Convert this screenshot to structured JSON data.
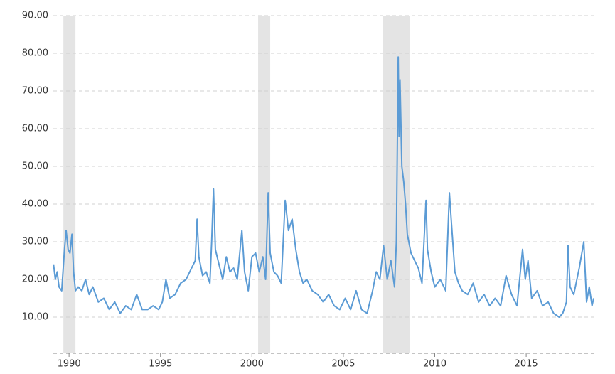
{
  "chart_data": {
    "type": "line",
    "xlim": [
      1989.14,
      2018.69
    ],
    "ylim": [
      0,
      90
    ],
    "xticks": [
      1990,
      1995,
      2000,
      2005,
      2010,
      2015
    ],
    "yticks": [
      {
        "value": 10,
        "label": "10.00"
      },
      {
        "value": 20,
        "label": "20.00"
      },
      {
        "value": 30,
        "label": "30.00"
      },
      {
        "value": 40,
        "label": "40.00"
      },
      {
        "value": 50,
        "label": "50.00"
      },
      {
        "value": 60,
        "label": "60.00"
      },
      {
        "value": 70,
        "label": "70.00"
      },
      {
        "value": 80,
        "label": "80.00"
      },
      {
        "value": 90,
        "label": "90.00"
      }
    ],
    "grid": true,
    "recessions": [
      [
        1989.69,
        1990.35
      ],
      [
        2000.34,
        2001.0
      ],
      [
        2007.15,
        2008.63
      ]
    ],
    "recession_color": "#e4e4e4",
    "x": [
      1989.15,
      1989.25,
      1989.35,
      1989.45,
      1989.6,
      1989.75,
      1989.84,
      1989.95,
      1990.05,
      1990.16,
      1990.25,
      1990.35,
      1990.5,
      1990.7,
      1990.9,
      1991.1,
      1991.3,
      1991.6,
      1991.9,
      1992.2,
      1992.5,
      1992.8,
      1993.1,
      1993.4,
      1993.7,
      1994.0,
      1994.3,
      1994.6,
      1994.9,
      1995.1,
      1995.3,
      1995.5,
      1995.8,
      1996.1,
      1996.4,
      1996.7,
      1996.9,
      1997.0,
      1997.1,
      1997.3,
      1997.5,
      1997.7,
      1997.8,
      1997.9,
      1998.0,
      1998.2,
      1998.4,
      1998.6,
      1998.8,
      1999.0,
      1999.2,
      1999.45,
      1999.6,
      1999.8,
      2000.0,
      2000.2,
      2000.4,
      2000.6,
      2000.75,
      2000.89,
      2001.0,
      2001.2,
      2001.4,
      2001.6,
      2001.82,
      2002.0,
      2002.2,
      2002.4,
      2002.6,
      2002.8,
      2003.0,
      2003.3,
      2003.6,
      2003.9,
      2004.2,
      2004.5,
      2004.8,
      2005.1,
      2005.4,
      2005.7,
      2006.0,
      2006.3,
      2006.6,
      2006.8,
      2007.0,
      2007.2,
      2007.4,
      2007.6,
      2007.8,
      2007.9,
      2008.0,
      2008.05,
      2008.1,
      2008.2,
      2008.3,
      2008.4,
      2008.5,
      2008.7,
      2008.9,
      2009.1,
      2009.3,
      2009.52,
      2009.6,
      2009.8,
      2010.0,
      2010.3,
      2010.6,
      2010.8,
      2010.9,
      2011.1,
      2011.3,
      2011.5,
      2011.8,
      2012.1,
      2012.4,
      2012.7,
      2013.0,
      2013.3,
      2013.6,
      2013.9,
      2014.2,
      2014.5,
      2014.8,
      2014.95,
      2015.1,
      2015.3,
      2015.6,
      2015.9,
      2016.2,
      2016.5,
      2016.8,
      2017.0,
      2017.2,
      2017.29,
      2017.4,
      2017.6,
      2017.9,
      2018.15,
      2018.3,
      2018.45,
      2018.6,
      2018.69
    ],
    "series": [
      {
        "color": "#5b9bd5",
        "values": [
          24,
          20,
          22,
          18,
          17,
          28,
          33,
          28,
          27,
          32,
          22,
          17,
          18,
          17,
          20,
          16,
          18,
          14,
          15,
          12,
          14,
          11,
          13,
          12,
          16,
          12,
          12,
          13,
          12,
          14,
          20,
          15,
          16,
          19,
          20,
          23,
          25,
          36,
          26,
          21,
          22,
          19,
          30,
          44,
          28,
          24,
          20,
          26,
          22,
          23,
          20,
          33,
          22,
          17,
          26,
          27,
          22,
          26,
          20,
          43,
          27,
          22,
          21,
          19,
          41,
          33,
          36,
          28,
          22,
          19,
          20,
          17,
          16,
          14,
          16,
          13,
          12,
          15,
          12,
          17,
          12,
          11,
          17,
          22,
          20,
          29,
          20,
          25,
          18,
          30,
          79,
          58,
          73,
          50,
          46,
          40,
          32,
          27,
          25,
          23,
          19,
          41,
          28,
          22,
          18,
          20,
          17,
          43,
          36,
          22,
          19,
          17,
          16,
          19,
          14,
          16,
          13,
          15,
          13,
          21,
          16,
          13,
          28,
          20,
          25,
          15,
          17,
          13,
          14,
          11,
          10,
          11,
          14,
          29,
          18,
          16,
          23,
          30,
          14,
          18,
          13,
          15
        ]
      }
    ]
  }
}
